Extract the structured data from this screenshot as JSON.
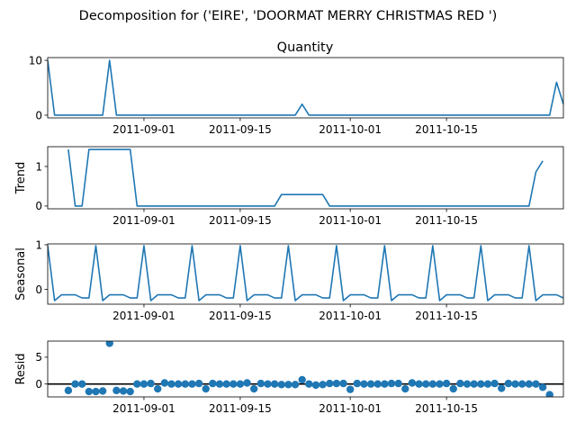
{
  "chart_data": {
    "type": "line",
    "title": "Decomposition for ('EIRE', 'DOORMAT MERRY CHRISTMAS RED ')",
    "x_start": "2011-08-18",
    "x_ticks": [
      "2011-09-01",
      "2011-09-15",
      "2011-10-01",
      "2011-10-15"
    ],
    "color": "#1f77b4",
    "panels": [
      {
        "key": "quantity",
        "type": "line",
        "title": "Quantity",
        "ylabel": "",
        "ylim": [
          -0.5,
          10.5
        ],
        "yticks": [
          0,
          10
        ],
        "points": [
          [
            0,
            10
          ],
          [
            1,
            0
          ],
          [
            8,
            0
          ],
          [
            9,
            10
          ],
          [
            10,
            0
          ],
          [
            36,
            0
          ],
          [
            37,
            2
          ],
          [
            38,
            0
          ],
          [
            73,
            0
          ],
          [
            74,
            6
          ],
          [
            75,
            2
          ]
        ]
      },
      {
        "key": "trend",
        "type": "line",
        "title": "",
        "ylabel": "Trend",
        "ylim": [
          -0.07,
          1.5
        ],
        "yticks": [
          0,
          1
        ],
        "points": [
          [
            3,
            1.43
          ],
          [
            4,
            0
          ],
          [
            5,
            0
          ],
          [
            6,
            1.43
          ],
          [
            12,
            1.43
          ],
          [
            13,
            0
          ],
          [
            33,
            0
          ],
          [
            34,
            0.29
          ],
          [
            40,
            0.29
          ],
          [
            41,
            0
          ],
          [
            70,
            0
          ],
          [
            71,
            0.86
          ],
          [
            72,
            1.14
          ]
        ]
      },
      {
        "key": "seasonal",
        "type": "line",
        "title": "",
        "ylabel": "Seasonal",
        "ylim": [
          -0.33,
          1.02
        ],
        "yticks": [
          0,
          1
        ],
        "pattern": [
          -0.19,
          0.98,
          -0.25,
          -0.12,
          -0.12,
          -0.12,
          -0.19
        ],
        "pattern_start": -1,
        "n": 76
      },
      {
        "key": "resid",
        "type": "scatter",
        "title": "",
        "ylabel": "Resid",
        "ylim": [
          -2.4,
          8.0
        ],
        "yticks": [
          0,
          5
        ],
        "baseline": 0,
        "values": [
          null,
          null,
          null,
          -1.2,
          0,
          0,
          -1.4,
          -1.4,
          -1.3,
          7.6,
          -1.2,
          -1.3,
          -1.4,
          0,
          0,
          0.1,
          -0.9,
          0.2,
          0,
          0,
          0,
          0,
          0.1,
          -0.9,
          0.1,
          0,
          0,
          0,
          0,
          0.2,
          -0.9,
          0.1,
          0,
          0,
          -0.1,
          -0.1,
          -0.1,
          0.8,
          0,
          -0.2,
          -0.1,
          0.1,
          0.1,
          0.1,
          -1,
          0.1,
          0,
          0,
          0,
          0,
          0.1,
          0.1,
          -0.9,
          0.2,
          0,
          0,
          0,
          0,
          0.1,
          -0.9,
          0.1,
          0,
          0,
          0,
          0,
          0.1,
          -0.8,
          0.1,
          0,
          0,
          0,
          0,
          -0.6,
          -2
        ]
      }
    ]
  }
}
